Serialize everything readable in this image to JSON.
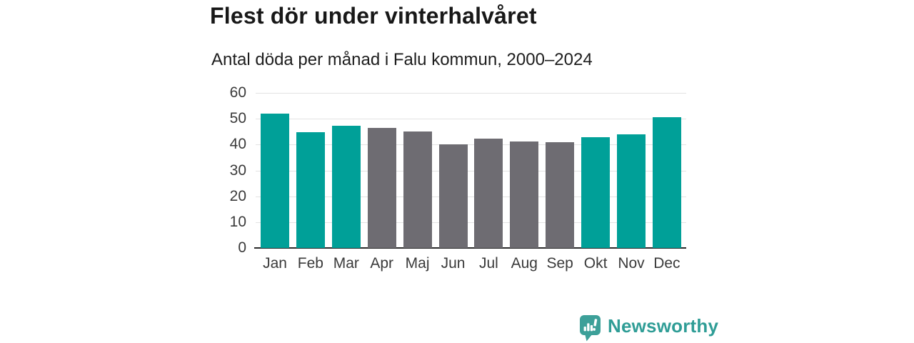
{
  "title": "Flest dör under vinterhalvåret",
  "subtitle": "Antal döda per månad i Falu kommun, 2000–2024",
  "branding": {
    "name": "Newsworthy",
    "logo_icon": "bar-chart-speech-bubble-icon",
    "logo_color": "#3da099",
    "text_color": "#2f9d96"
  },
  "colors": {
    "winter_bar": "#00a098",
    "summer_bar": "#6e6c72",
    "gridline": "#e3e3e3",
    "axis_line": "#2b2b2b",
    "background": "#ffffff"
  },
  "chart_data": {
    "type": "bar",
    "title": "Flest dör under vinterhalvåret",
    "subtitle": "Antal döda per månad i Falu kommun, 2000–2024",
    "categories": [
      "Jan",
      "Feb",
      "Mar",
      "Apr",
      "Maj",
      "Jun",
      "Jul",
      "Aug",
      "Sep",
      "Okt",
      "Nov",
      "Dec"
    ],
    "values": [
      52.0,
      44.8,
      47.2,
      46.5,
      45.2,
      40.1,
      42.3,
      41.2,
      41.0,
      42.8,
      43.9,
      50.6
    ],
    "bar_colors": [
      "#00a098",
      "#00a098",
      "#00a098",
      "#6e6c72",
      "#6e6c72",
      "#6e6c72",
      "#6e6c72",
      "#6e6c72",
      "#6e6c72",
      "#00a098",
      "#00a098",
      "#00a098"
    ],
    "xlabel": "",
    "ylabel": "",
    "ylim": [
      0,
      60
    ],
    "yticks": [
      0,
      10,
      20,
      30,
      40,
      50,
      60
    ],
    "grid": true,
    "legend": false
  }
}
